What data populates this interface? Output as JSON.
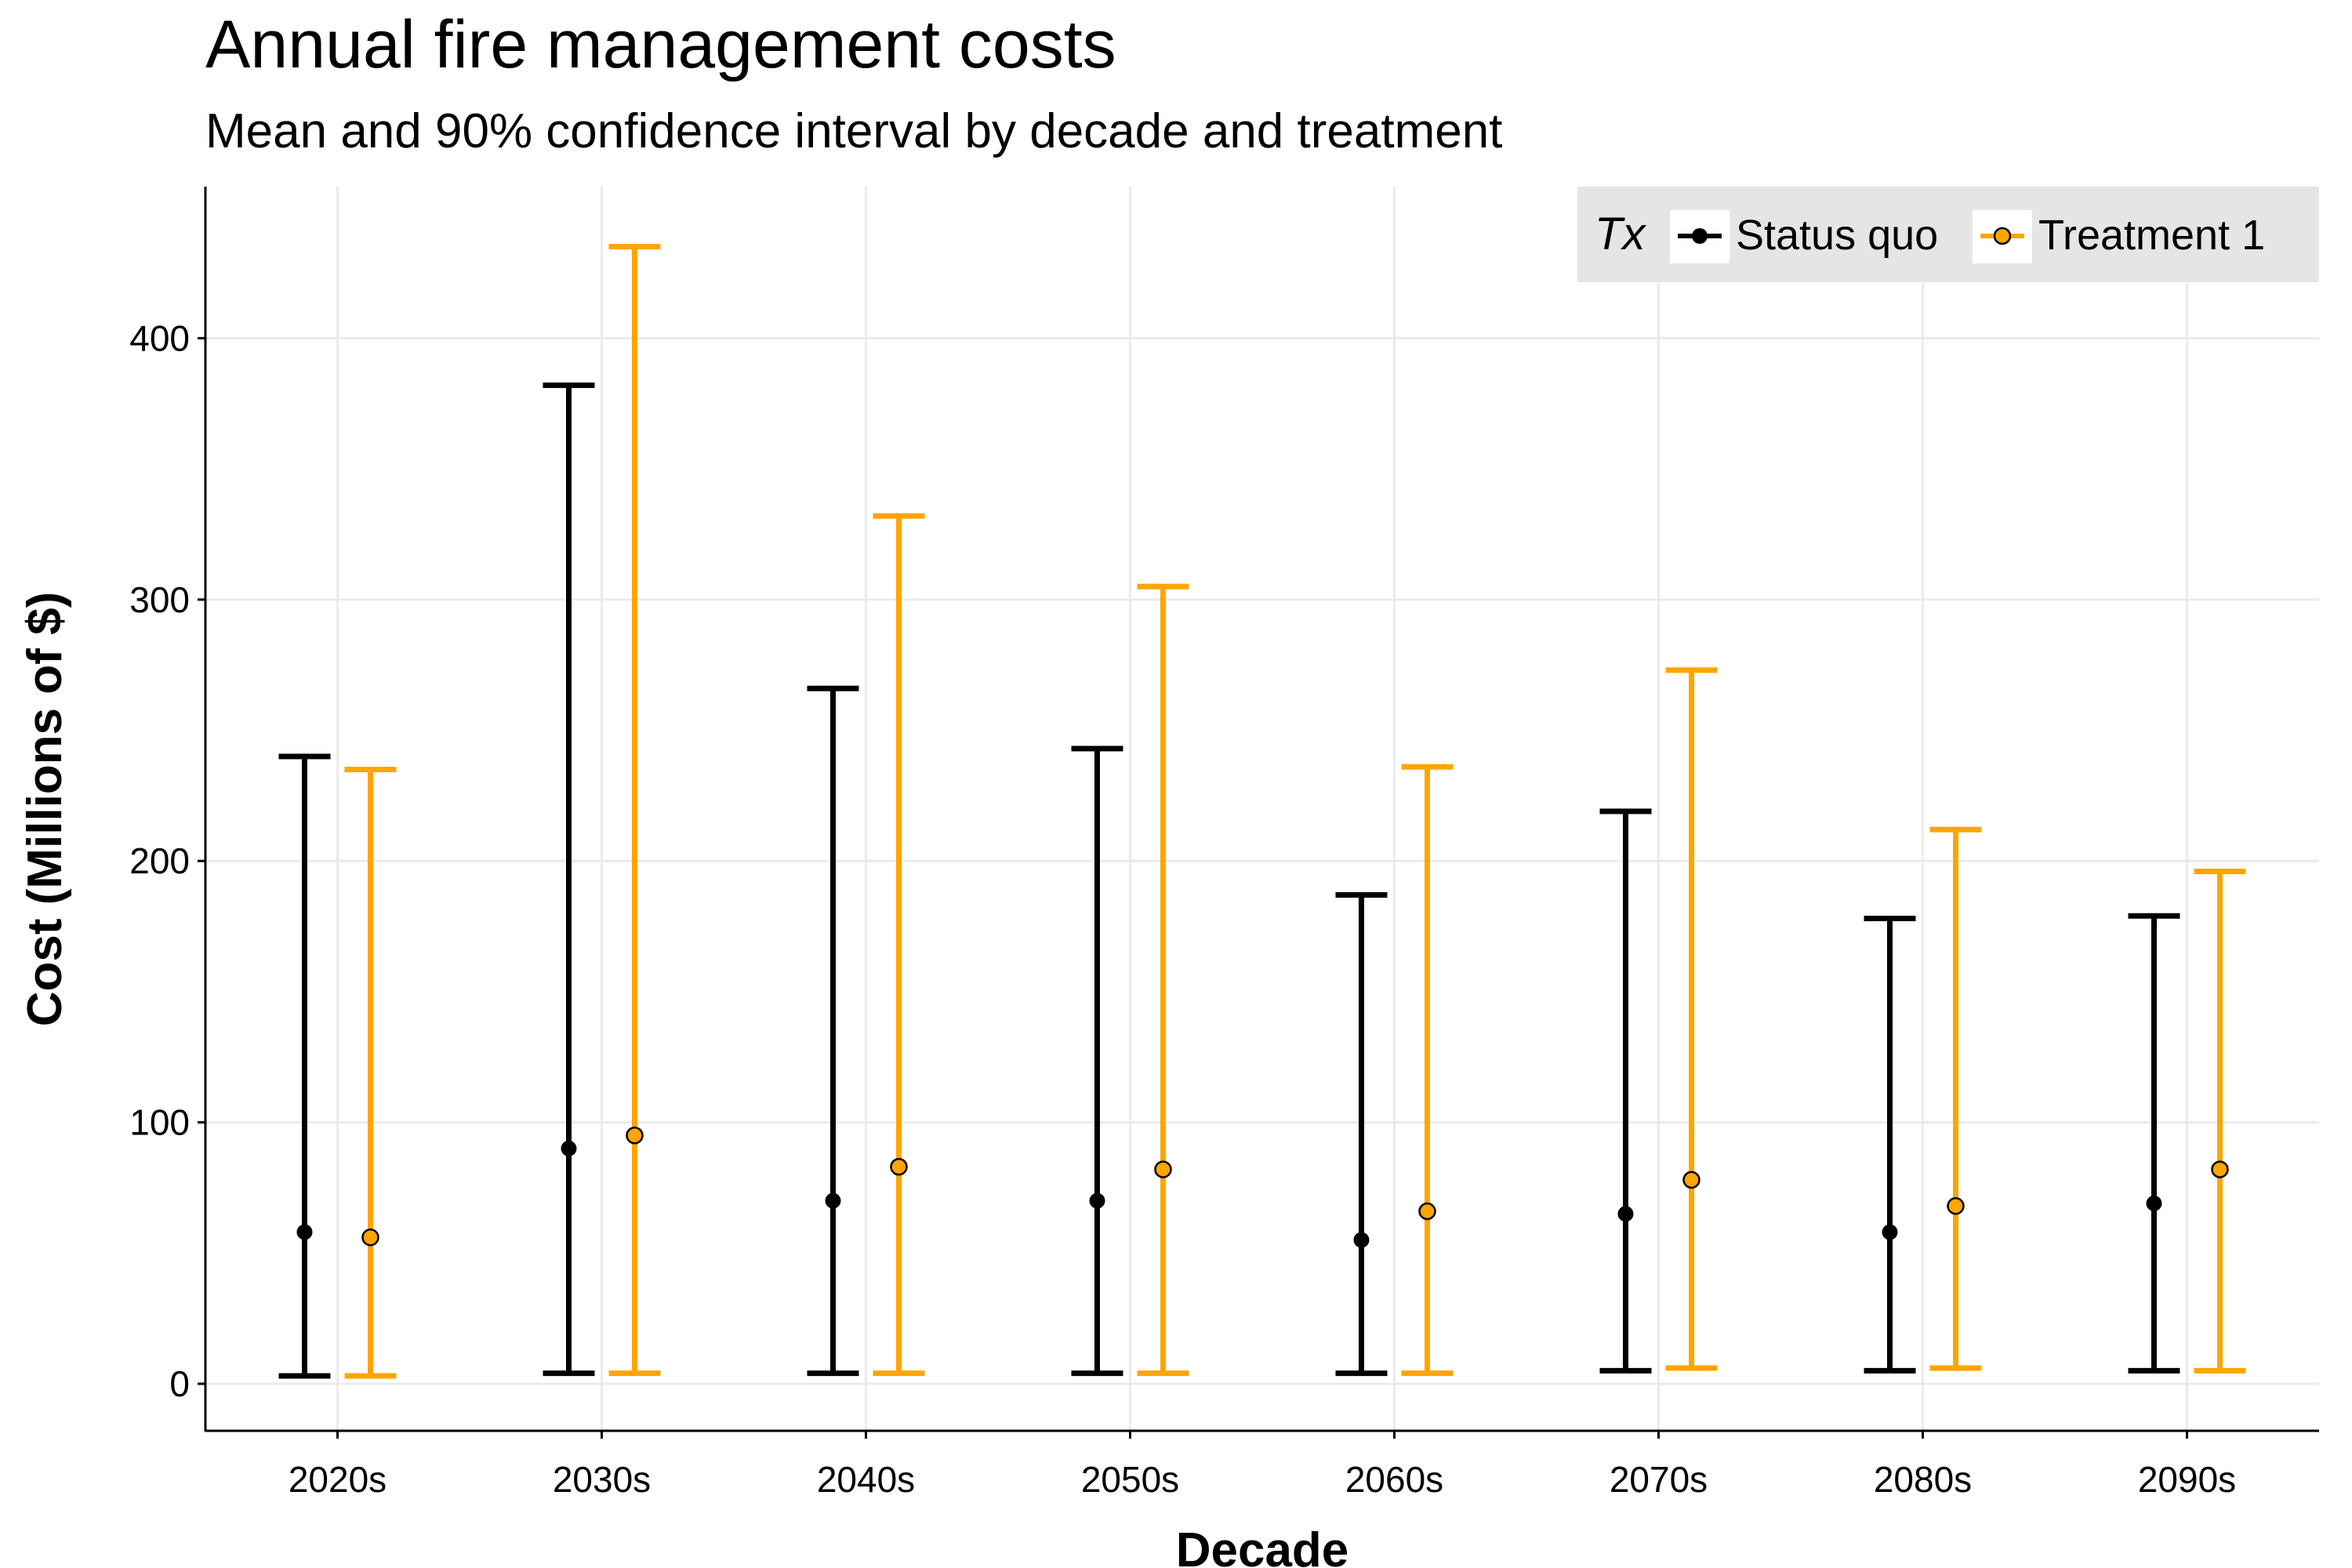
{
  "title": "Annual fire management costs",
  "subtitle": "Mean and 90% confidence interval by decade and treatment",
  "colors": {
    "status_quo": "#000000",
    "treatment_1": "#FFA500",
    "grid": "#EBEBEB",
    "legend_bg": "#E5E5E5"
  },
  "legend": {
    "title": "Tx",
    "placement": "top-right",
    "items": [
      {
        "label": "Status quo",
        "color": "#000000"
      },
      {
        "label": "Treatment 1",
        "color": "#FFA500"
      }
    ]
  },
  "chart_data": {
    "type": "errorbar",
    "title": "Annual fire management costs",
    "subtitle": "Mean and 90% confidence interval by decade and treatment",
    "xlabel": "Decade",
    "ylabel": "Cost (Millions of $)",
    "ylim": [
      -18,
      458
    ],
    "yticks": [
      0,
      100,
      200,
      300,
      400
    ],
    "grid": true,
    "categories": [
      "2020s",
      "2030s",
      "2040s",
      "2050s",
      "2060s",
      "2070s",
      "2080s",
      "2090s"
    ],
    "series": [
      {
        "name": "Status quo",
        "color": "#000000",
        "mean": [
          58,
          90,
          70,
          70,
          55,
          65,
          58,
          69
        ],
        "lower": [
          3,
          4,
          4,
          4,
          4,
          5,
          5,
          5
        ],
        "upper": [
          240,
          382,
          266,
          243,
          187,
          219,
          178,
          179
        ]
      },
      {
        "name": "Treatment 1",
        "color": "#FFA500",
        "mean": [
          56,
          95,
          83,
          82,
          66,
          78,
          68,
          82
        ],
        "lower": [
          3,
          4,
          4,
          4,
          4,
          6,
          6,
          5
        ],
        "upper": [
          235,
          435,
          332,
          305,
          236,
          273,
          212,
          196
        ]
      }
    ]
  }
}
